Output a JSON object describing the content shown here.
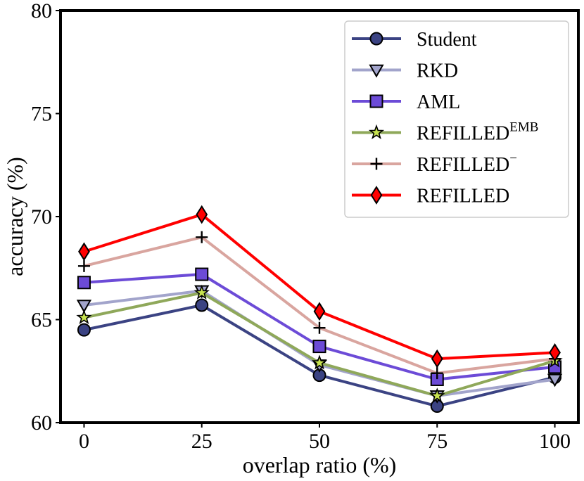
{
  "chart_data": {
    "type": "line",
    "title": "",
    "xlabel": "overlap ratio (%)",
    "ylabel": "accuracy (%)",
    "x": [
      0,
      25,
      50,
      75,
      100
    ],
    "x_tick_labels": [
      "0",
      "25",
      "50",
      "75",
      "100"
    ],
    "xlim": [
      -5,
      105
    ],
    "ylim": [
      60,
      80
    ],
    "y_ticks": [
      60,
      65,
      70,
      75,
      80
    ],
    "y_tick_labels": [
      "60",
      "65",
      "70",
      "75",
      "80"
    ],
    "grid": false,
    "legend_position": "top-right",
    "series": [
      {
        "name": "Student",
        "label_base": "Student",
        "label_sup": "",
        "marker": "circle",
        "color": "#3b4383",
        "marker_fill": "#3b4383",
        "values": [
          64.5,
          65.7,
          62.3,
          60.8,
          62.2
        ]
      },
      {
        "name": "RKD",
        "label_base": "RKD",
        "label_sup": "",
        "marker": "triangle-down",
        "color": "#a2a4cb",
        "marker_fill": "#a2a4cb",
        "values": [
          65.7,
          66.4,
          62.8,
          61.3,
          62.1
        ]
      },
      {
        "name": "AML",
        "label_base": "AML",
        "label_sup": "",
        "marker": "square",
        "color": "#6c4bd7",
        "marker_fill": "#6c4bd7",
        "values": [
          66.8,
          67.2,
          63.7,
          62.1,
          62.7
        ]
      },
      {
        "name": "REFILLED^EMB",
        "label_base": "REFILLED",
        "label_sup": "EMB",
        "marker": "star",
        "color": "#8fa85a",
        "marker_fill": "#c7e34f",
        "values": [
          65.1,
          66.3,
          62.9,
          61.3,
          63.0
        ]
      },
      {
        "name": "REFILLED^-",
        "label_base": "REFILLED",
        "label_sup": "−",
        "marker": "plus",
        "color": "#d9a59f",
        "marker_fill": "#000000",
        "values": [
          67.6,
          69.0,
          64.6,
          62.4,
          63.1
        ]
      },
      {
        "name": "REFILLED",
        "label_base": "REFILLED",
        "label_sup": "",
        "marker": "diamond",
        "color": "#ff0000",
        "marker_fill": "#ff0000",
        "values": [
          68.3,
          70.1,
          65.4,
          63.1,
          63.4
        ]
      }
    ]
  }
}
